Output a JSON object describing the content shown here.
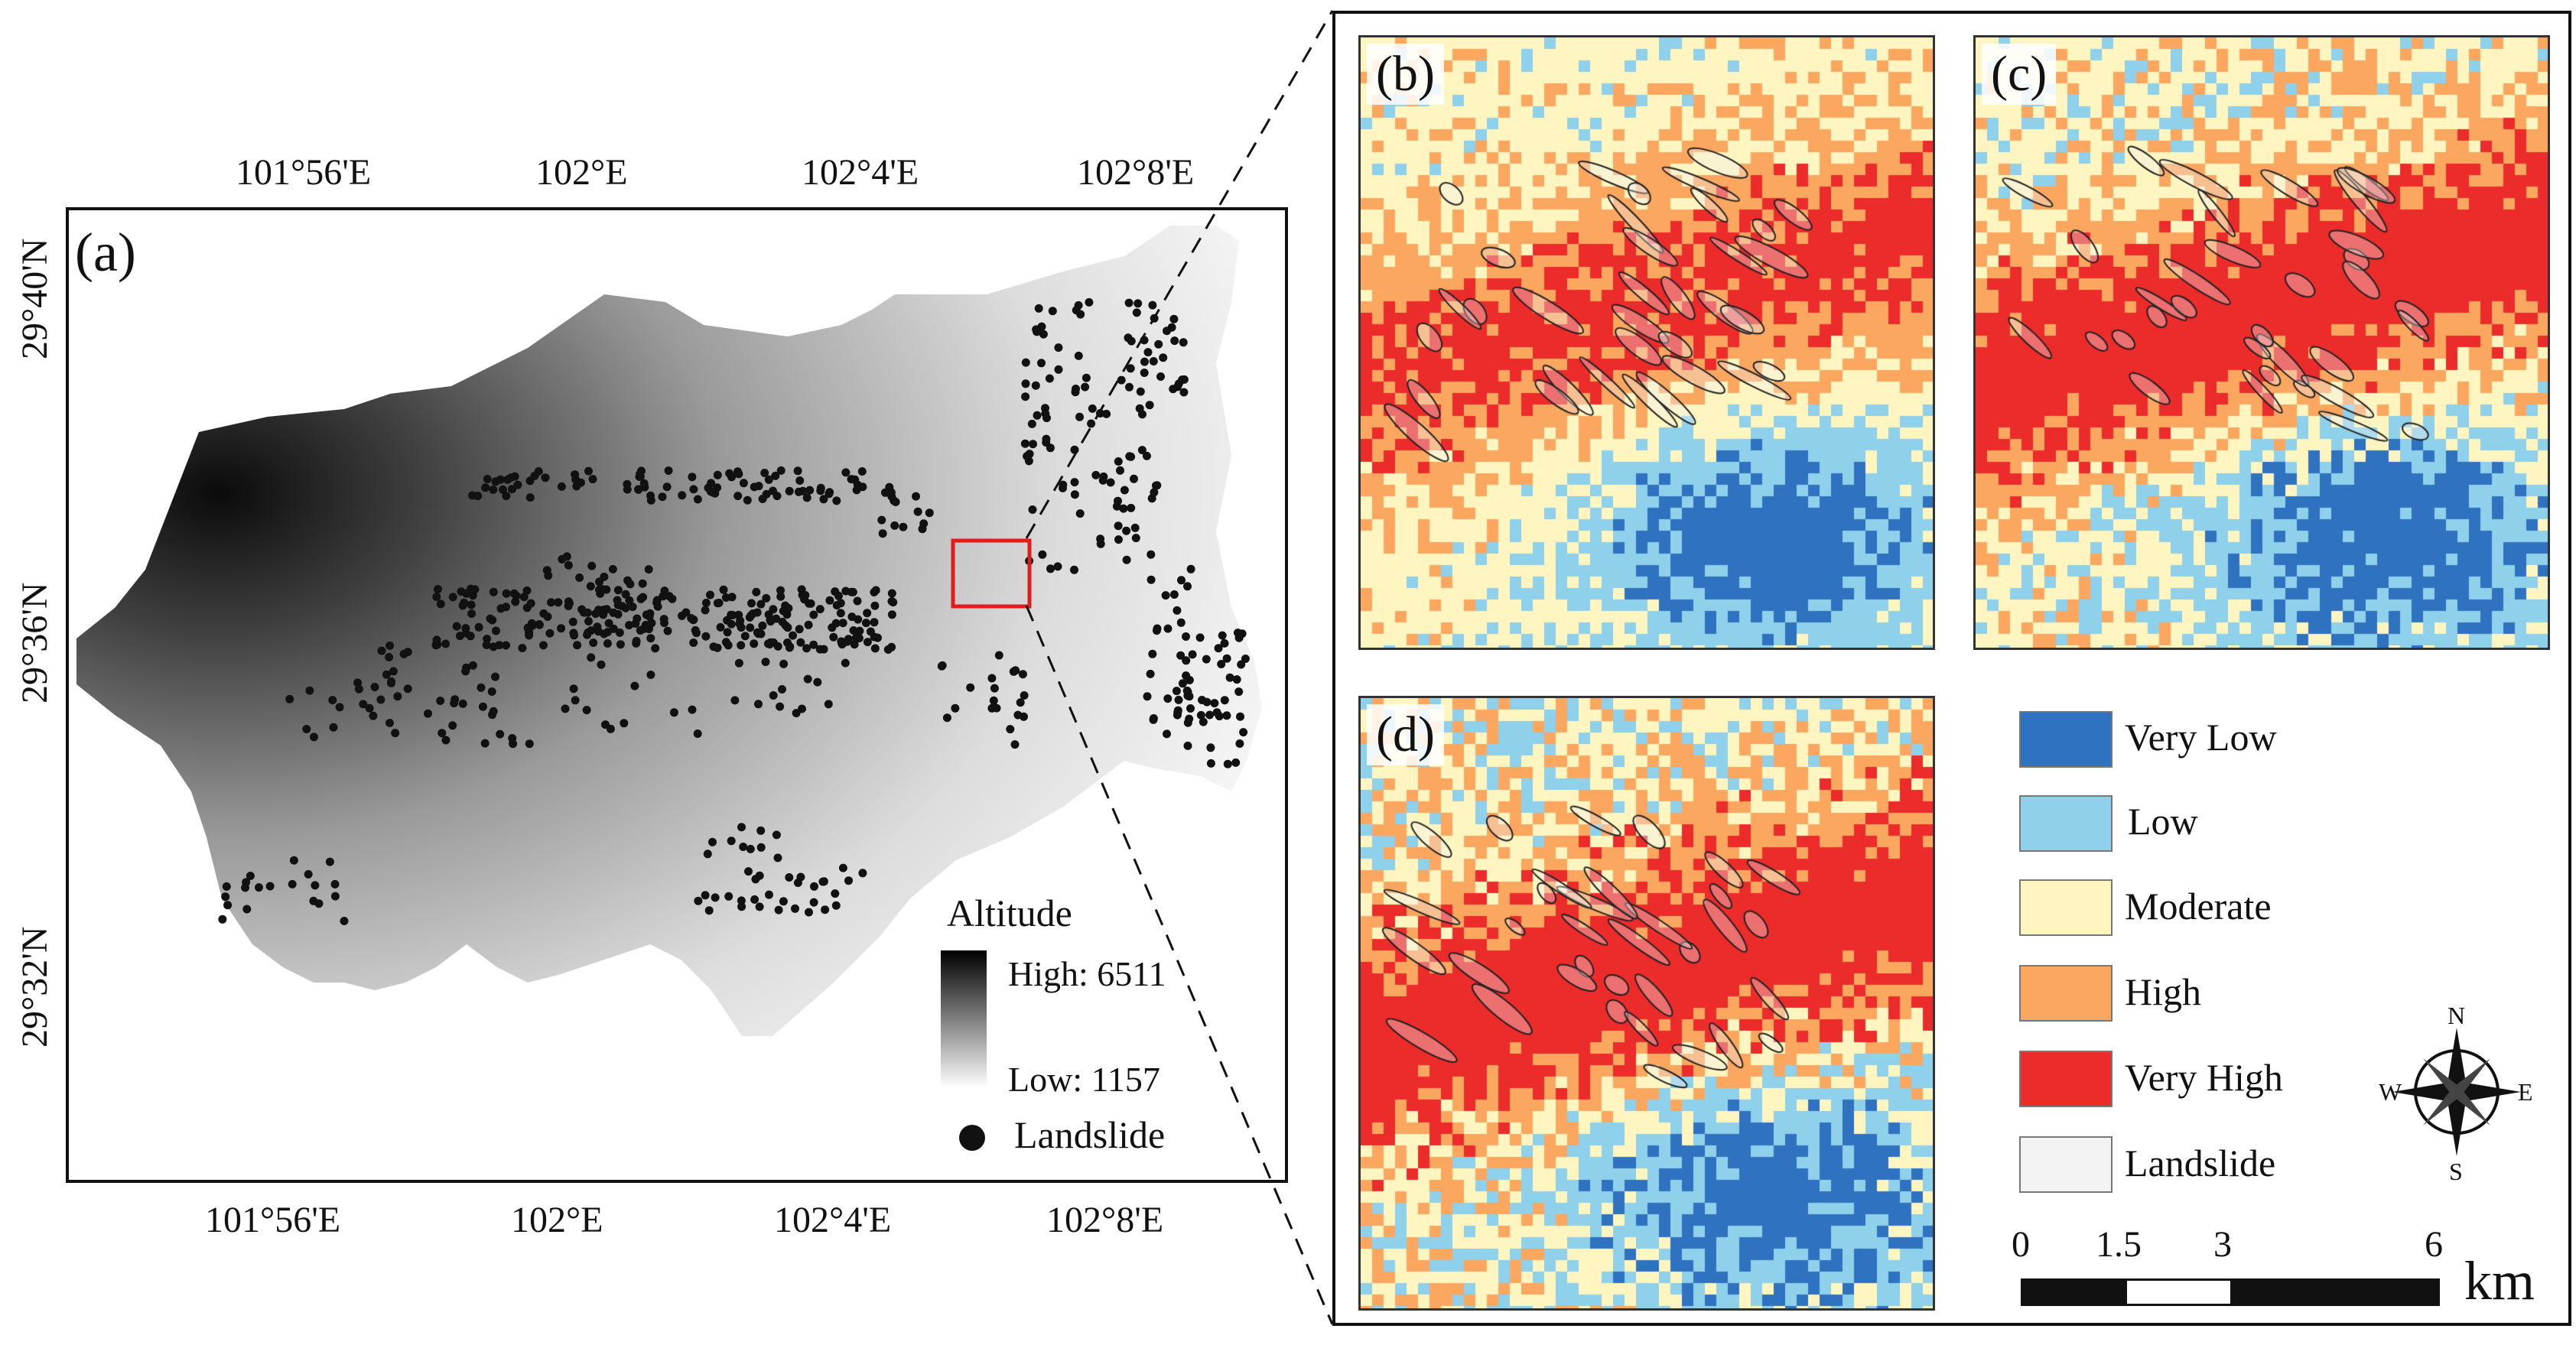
{
  "overview": {
    "panel_label": "(a)",
    "lon_ticks_top": [
      "101°56'E",
      "102°E",
      "102°4'E",
      "102°8'E"
    ],
    "lon_ticks_bottom": [
      "101°56'E",
      "102°E",
      "102°4'E",
      "102°8'E"
    ],
    "lat_ticks": [
      "29°40'N",
      "29°36'N",
      "29°32'N"
    ],
    "altitude_legend": {
      "title": "Altitude",
      "high_label": "High: 6511",
      "low_label": "Low: 1157",
      "landslide_label": "Landslide"
    },
    "colors": {
      "landslide_dot": "#111111",
      "focus_box": "#e21b1b"
    }
  },
  "detail_panels": [
    {
      "label": "(b)"
    },
    {
      "label": "(c)"
    },
    {
      "label": "(d)"
    }
  ],
  "susceptibility_legend": [
    {
      "label": "Very Low",
      "color": "#2f73c0"
    },
    {
      "label": "Low",
      "color": "#8fd0ea"
    },
    {
      "label": "Moderate",
      "color": "#fff5c0"
    },
    {
      "label": "High",
      "color": "#fba760"
    },
    {
      "label": "Very High",
      "color": "#ec2b2b"
    },
    {
      "label": "Landslide",
      "color": "#f3f3f3"
    }
  ],
  "compass": {
    "n": "N",
    "s": "S",
    "e": "E",
    "w": "W"
  },
  "scale_bar": {
    "ticks": [
      "0",
      "1.5",
      "3",
      "6"
    ],
    "unit": "km"
  }
}
